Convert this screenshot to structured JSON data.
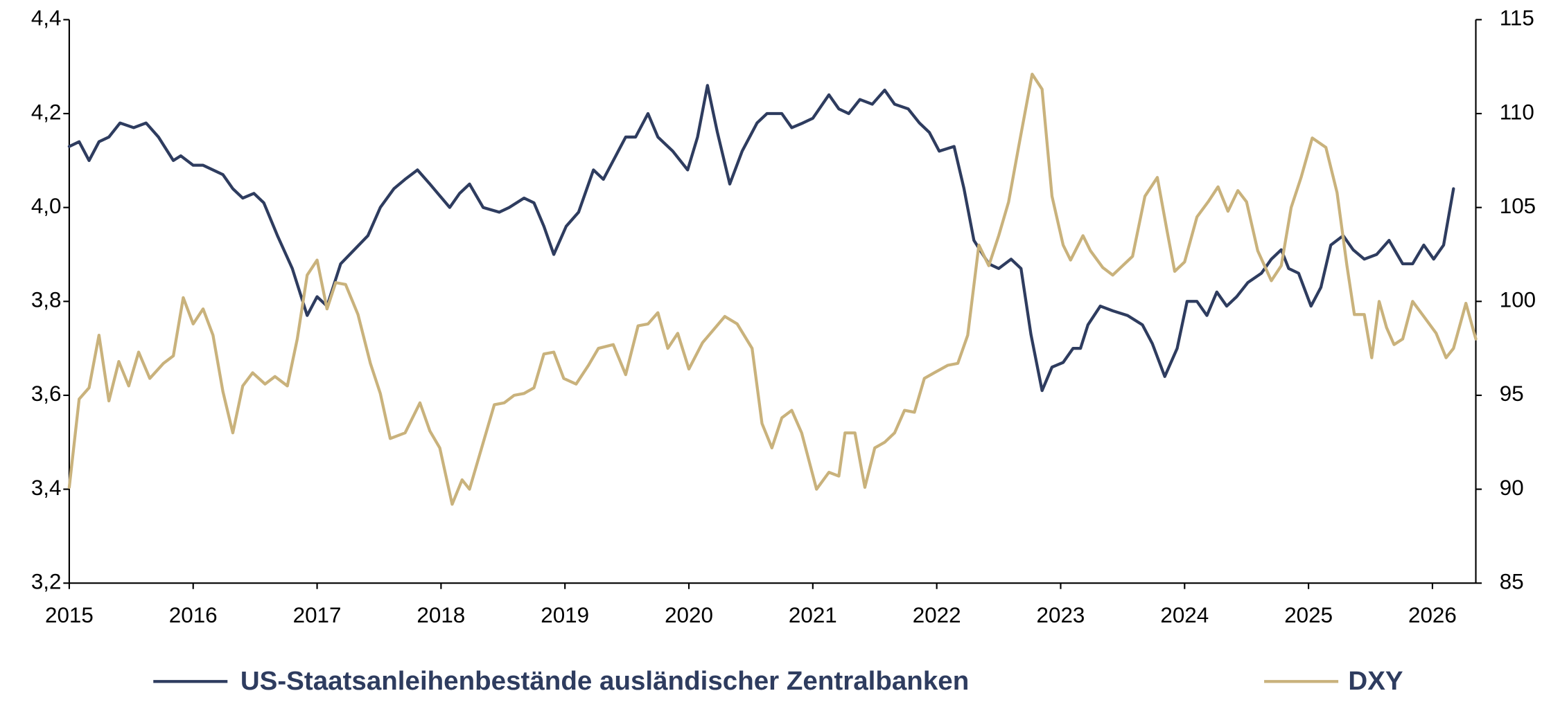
{
  "chart_data": {
    "type": "line",
    "xlim": [
      2015,
      2026.35
    ],
    "xticks": [
      2015,
      2016,
      2017,
      2018,
      2019,
      2020,
      2021,
      2022,
      2023,
      2024,
      2025,
      2026
    ],
    "ylim": [
      3.2,
      4.4
    ],
    "yticks": [
      {
        "value": 3.2,
        "label": "3,2"
      },
      {
        "value": 3.4,
        "label": "3,4"
      },
      {
        "value": 3.6,
        "label": "3,6"
      },
      {
        "value": 3.8,
        "label": "3,8"
      },
      {
        "value": 4.0,
        "label": "4,0"
      },
      {
        "value": 4.2,
        "label": "4,2"
      },
      {
        "value": 4.4,
        "label": "4,4"
      }
    ],
    "y2lim": [
      85,
      115
    ],
    "y2ticks": [
      85,
      90,
      95,
      100,
      105,
      110,
      115
    ],
    "legend": "bottom",
    "series": [
      {
        "name": "US-Staatsanleihenbestände ausländischer Zentralbanken",
        "color": "#2e3c5f",
        "x": [
          2015.0,
          2015.08,
          2015.16,
          2015.24,
          2015.32,
          2015.41,
          2015.52,
          2015.62,
          2015.72,
          2015.84,
          2015.9,
          2016.0,
          2016.08,
          2016.16,
          2016.24,
          2016.32,
          2016.4,
          2016.49,
          2016.57,
          2016.68,
          2016.8,
          2016.92,
          2017.0,
          2017.08,
          2017.19,
          2017.3,
          2017.41,
          2017.51,
          2017.62,
          2017.71,
          2017.81,
          2017.91,
          2018.07,
          2018.15,
          2018.23,
          2018.34,
          2018.47,
          2018.55,
          2018.67,
          2018.75,
          2018.83,
          2018.91,
          2019.01,
          2019.11,
          2019.23,
          2019.31,
          2019.41,
          2019.49,
          2019.57,
          2019.67,
          2019.75,
          2019.87,
          2019.99,
          2020.07,
          2020.15,
          2020.23,
          2020.33,
          2020.43,
          2020.55,
          2020.63,
          2020.75,
          2020.83,
          2020.92,
          2021.0,
          2021.13,
          2021.21,
          2021.29,
          2021.38,
          2021.48,
          2021.58,
          2021.66,
          2021.77,
          2021.86,
          2021.94,
          2022.02,
          2022.14,
          2022.22,
          2022.3,
          2022.42,
          2022.5,
          2022.6,
          2022.68,
          2022.76,
          2022.85,
          2022.93,
          2023.02,
          2023.1,
          2023.16,
          2023.22,
          2023.32,
          2023.42,
          2023.54,
          2023.66,
          2023.74,
          2023.84,
          2023.94,
          2024.02,
          2024.1,
          2024.18,
          2024.26,
          2024.34,
          2024.42,
          2024.51,
          2024.62,
          2024.7,
          2024.78,
          2024.84,
          2024.92,
          2025.02,
          2025.1,
          2025.18,
          2025.28,
          2025.36,
          2025.45,
          2025.55,
          2025.65,
          2025.76,
          2025.84,
          2025.93,
          2026.01,
          2026.09,
          2026.17
        ],
        "values": [
          4.13,
          4.14,
          4.1,
          4.14,
          4.15,
          4.18,
          4.17,
          4.18,
          4.15,
          4.1,
          4.11,
          4.09,
          4.09,
          4.08,
          4.07,
          4.04,
          4.02,
          4.03,
          4.01,
          3.94,
          3.87,
          3.77,
          3.81,
          3.79,
          3.88,
          3.91,
          3.94,
          4.0,
          4.04,
          4.06,
          4.08,
          4.05,
          4.0,
          4.03,
          4.05,
          4.0,
          3.99,
          4.0,
          4.02,
          4.01,
          3.96,
          3.9,
          3.96,
          3.99,
          4.08,
          4.06,
          4.11,
          4.15,
          4.15,
          4.2,
          4.15,
          4.12,
          4.08,
          4.15,
          4.26,
          4.16,
          4.05,
          4.12,
          4.18,
          4.2,
          4.2,
          4.17,
          4.18,
          4.19,
          4.24,
          4.21,
          4.2,
          4.23,
          4.22,
          4.25,
          4.22,
          4.21,
          4.18,
          4.16,
          4.12,
          4.13,
          4.04,
          3.93,
          3.88,
          3.87,
          3.89,
          3.87,
          3.73,
          3.61,
          3.66,
          3.67,
          3.7,
          3.7,
          3.75,
          3.79,
          3.78,
          3.77,
          3.75,
          3.71,
          3.64,
          3.7,
          3.8,
          3.8,
          3.77,
          3.82,
          3.79,
          3.81,
          3.84,
          3.86,
          3.89,
          3.91,
          3.87,
          3.86,
          3.79,
          3.83,
          3.92,
          3.94,
          3.91,
          3.89,
          3.9,
          3.93,
          3.88,
          3.88,
          3.92,
          3.89,
          3.92,
          4.04
        ]
      },
      {
        "name": "DXY",
        "color": "#c9b27c",
        "axis": "y2",
        "x": [
          2015.0,
          2015.08,
          2015.16,
          2015.24,
          2015.32,
          2015.4,
          2015.48,
          2015.56,
          2015.65,
          2015.76,
          2015.84,
          2015.92,
          2016.0,
          2016.08,
          2016.16,
          2016.24,
          2016.32,
          2016.4,
          2016.48,
          2016.58,
          2016.66,
          2016.76,
          2016.84,
          2016.92,
          2017.0,
          2017.08,
          2017.15,
          2017.23,
          2017.33,
          2017.43,
          2017.51,
          2017.59,
          2017.71,
          2017.83,
          2017.91,
          2017.99,
          2018.09,
          2018.17,
          2018.23,
          2018.35,
          2018.43,
          2018.51,
          2018.59,
          2018.67,
          2018.75,
          2018.83,
          2018.91,
          2018.99,
          2019.09,
          2019.19,
          2019.27,
          2019.39,
          2019.49,
          2019.59,
          2019.67,
          2019.75,
          2019.83,
          2019.91,
          2020.0,
          2020.11,
          2020.2,
          2020.29,
          2020.39,
          2020.51,
          2020.59,
          2020.67,
          2020.75,
          2020.83,
          2020.91,
          2021.03,
          2021.13,
          2021.21,
          2021.26,
          2021.34,
          2021.42,
          2021.5,
          2021.58,
          2021.66,
          2021.74,
          2021.82,
          2021.9,
          2021.98,
          2022.09,
          2022.17,
          2022.25,
          2022.34,
          2022.42,
          2022.5,
          2022.58,
          2022.66,
          2022.77,
          2022.85,
          2022.93,
          2023.02,
          2023.08,
          2023.18,
          2023.24,
          2023.34,
          2023.42,
          2023.5,
          2023.58,
          2023.68,
          2023.78,
          2023.86,
          2023.92,
          2024.0,
          2024.1,
          2024.19,
          2024.27,
          2024.35,
          2024.43,
          2024.5,
          2024.59,
          2024.7,
          2024.78,
          2024.86,
          2024.94,
          2025.03,
          2025.14,
          2025.23,
          2025.31,
          2025.37,
          2025.45,
          2025.51,
          2025.57,
          2025.63,
          2025.69,
          2025.76,
          2025.84,
          2025.93,
          2026.03,
          2026.11,
          2026.17,
          2026.27,
          2026.35
        ],
        "values": [
          90.1,
          94.8,
          95.4,
          98.2,
          94.7,
          96.8,
          95.5,
          97.3,
          95.9,
          96.7,
          97.1,
          100.2,
          98.8,
          99.6,
          98.2,
          95.2,
          93.0,
          95.5,
          96.2,
          95.6,
          96.0,
          95.5,
          98.0,
          101.4,
          102.2,
          99.6,
          101.0,
          100.9,
          99.3,
          96.7,
          95.1,
          92.7,
          93.0,
          94.6,
          93.1,
          92.2,
          89.2,
          90.5,
          90.0,
          92.7,
          94.5,
          94.6,
          95.0,
          95.1,
          95.4,
          97.2,
          97.3,
          95.9,
          95.6,
          96.6,
          97.5,
          97.7,
          96.1,
          98.7,
          98.8,
          99.4,
          97.5,
          98.3,
          96.4,
          97.8,
          98.5,
          99.2,
          98.8,
          97.5,
          93.5,
          92.2,
          93.8,
          94.2,
          93.0,
          90.0,
          90.9,
          90.7,
          93.0,
          93.0,
          90.1,
          92.2,
          92.5,
          93.0,
          94.2,
          94.1,
          95.9,
          96.2,
          96.6,
          96.7,
          98.2,
          103.0,
          101.9,
          103.5,
          105.3,
          108.2,
          112.1,
          111.3,
          105.6,
          103.0,
          102.2,
          103.5,
          102.7,
          101.8,
          101.4,
          101.9,
          102.4,
          105.6,
          106.6,
          103.7,
          101.6,
          102.1,
          104.5,
          105.3,
          106.1,
          104.8,
          105.9,
          105.3,
          102.7,
          101.1,
          101.9,
          105.0,
          106.6,
          108.7,
          108.2,
          105.8,
          101.9,
          99.3,
          99.3,
          97.0,
          100.0,
          98.6,
          97.7,
          98.0,
          100.0,
          99.2,
          98.3,
          97.0,
          97.5,
          99.9,
          98.0
        ]
      }
    ]
  }
}
